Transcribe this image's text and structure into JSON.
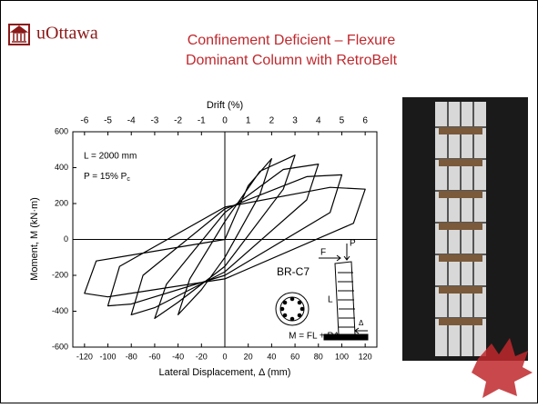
{
  "header": {
    "logo": "uOttawa",
    "title_lines": [
      "Confinement Deficient – Flexure",
      "Dominant Column with RetroBelt"
    ]
  },
  "chart_data": {
    "type": "line",
    "x_label": "Lateral Displacement, Δ (mm)",
    "y_label": "Moment, M (kN·m)",
    "x2_label": "Drift (%)",
    "xlim": [
      -130,
      130
    ],
    "xticks": [
      -120,
      -100,
      -80,
      -60,
      -40,
      -20,
      0,
      20,
      40,
      60,
      80,
      100,
      120
    ],
    "ylim": [
      -600,
      600
    ],
    "yticks": [
      -600,
      -400,
      -200,
      0,
      200,
      400,
      600
    ],
    "x2lim": [
      -6.5,
      6.5
    ],
    "x2ticks": [
      -6,
      -5,
      -4,
      -3,
      -2,
      -1,
      0,
      1,
      2,
      3,
      4,
      5,
      6
    ],
    "annotations": {
      "length": "L = 2000 mm",
      "load": "P = 15% P",
      "load_sub": "c",
      "specimen": "BR-C7",
      "formula": "M = FL + PΔ",
      "force": "F",
      "axial": "P",
      "height": "L",
      "disp": "Δ"
    },
    "series": [
      {
        "color": "#000000",
        "x": [
          0,
          20,
          40,
          30,
          0,
          -20,
          -40,
          -30,
          0,
          30,
          60,
          50,
          0,
          -40,
          -60,
          -50,
          0,
          50,
          80,
          70,
          0,
          -60,
          -80,
          -70,
          0,
          70,
          100,
          90,
          0,
          -80,
          -100,
          -90,
          0,
          90,
          120,
          110,
          0,
          -100,
          -120,
          -110,
          0
        ],
        "values": [
          0,
          300,
          450,
          250,
          -100,
          -280,
          -420,
          -220,
          100,
          380,
          470,
          280,
          -150,
          -350,
          -440,
          -250,
          150,
          390,
          420,
          220,
          -180,
          -380,
          -420,
          -200,
          170,
          350,
          360,
          150,
          -200,
          -360,
          -370,
          -150,
          180,
          290,
          280,
          90,
          -220,
          -320,
          -300,
          -120,
          0
        ]
      }
    ]
  }
}
